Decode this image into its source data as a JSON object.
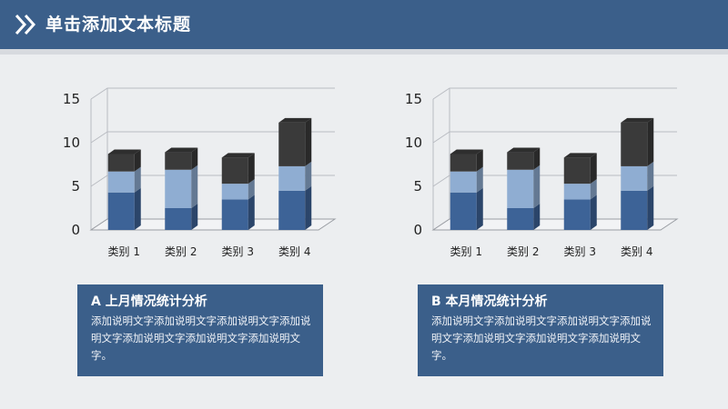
{
  "header": {
    "title": "单击添加文本标题"
  },
  "colors": {
    "header_bg": "#3b5f8a",
    "series1": "#3d6397",
    "series2": "#8fadd2",
    "series3": "#3a3a3a"
  },
  "chart_data": [
    {
      "type": "bar",
      "stacked": true,
      "three_d": true,
      "categories": [
        "类别 1",
        "类别 2",
        "类别 3",
        "类别 4"
      ],
      "series": [
        {
          "values": [
            4.3,
            2.5,
            3.5,
            4.5
          ]
        },
        {
          "values": [
            2.4,
            4.4,
            1.8,
            2.8
          ]
        },
        {
          "values": [
            2,
            2,
            3,
            5
          ]
        }
      ],
      "yticks": [
        "0",
        "5",
        "10",
        "15"
      ],
      "ylim": [
        0,
        15
      ],
      "grid": true
    },
    {
      "type": "bar",
      "stacked": true,
      "three_d": true,
      "categories": [
        "类别 1",
        "类别 2",
        "类别 3",
        "类别 4"
      ],
      "series": [
        {
          "values": [
            4.3,
            2.5,
            3.5,
            4.5
          ]
        },
        {
          "values": [
            2.4,
            4.4,
            1.8,
            2.8
          ]
        },
        {
          "values": [
            2,
            2,
            3,
            5
          ]
        }
      ],
      "yticks": [
        "0",
        "5",
        "10",
        "15"
      ],
      "ylim": [
        0,
        15
      ],
      "grid": true
    }
  ],
  "cards": [
    {
      "title": "A 上月情况统计分析",
      "body": "添加说明文字添加说明文字添加说明文字添加说明文字添加说明文字添加说明文字添加说明文字。"
    },
    {
      "title": "B 本月情况统计分析",
      "body": "添加说明文字添加说明文字添加说明文字添加说明文字添加说明文字添加说明文字添加说明文字。"
    }
  ]
}
